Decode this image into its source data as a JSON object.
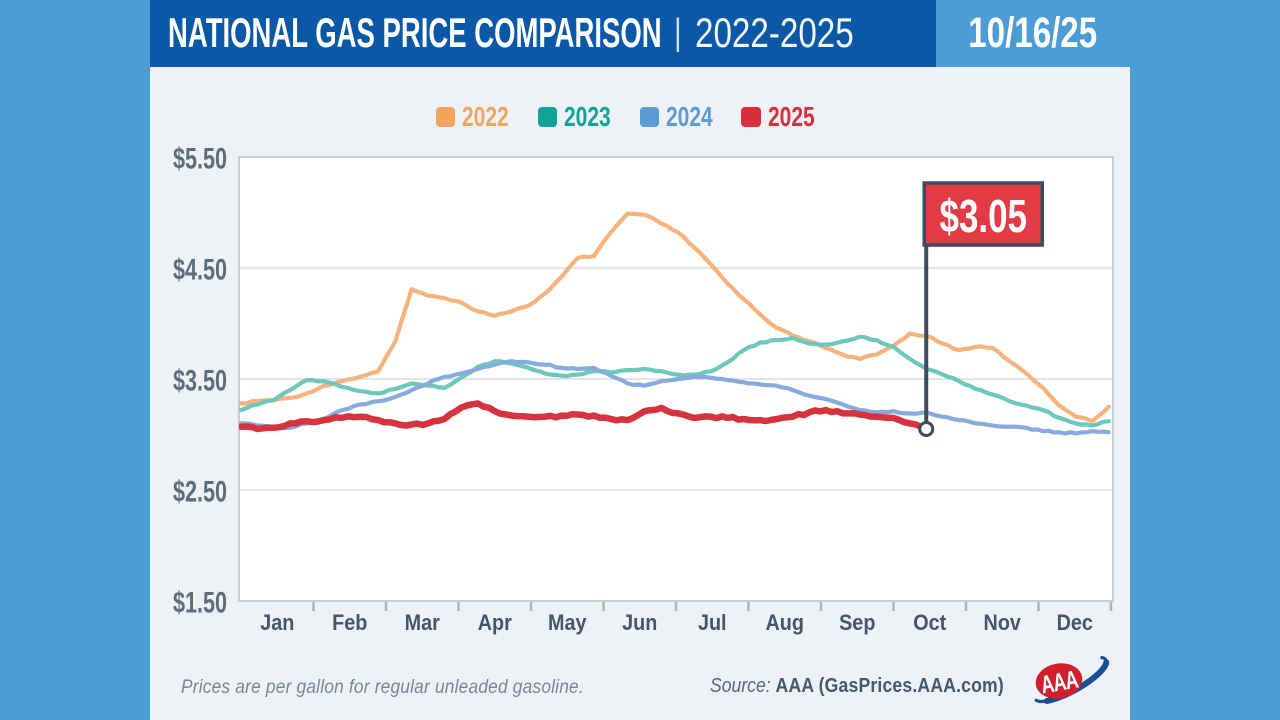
{
  "page": {
    "background": "#4D9CD6",
    "panel_color": "#EEF2F7"
  },
  "header": {
    "title": "NATIONAL GAS PRICE COMPARISON",
    "divider": "|",
    "subtitle": "2022-2025",
    "date": "10/16/25",
    "bar_color": "#0B58A6"
  },
  "legend": {
    "items": [
      {
        "label": "2022",
        "color": "#F0A45C"
      },
      {
        "label": "2023",
        "color": "#0FA496"
      },
      {
        "label": "2024",
        "color": "#5B9BD3"
      },
      {
        "label": "2025",
        "color": "#D92F3C"
      }
    ]
  },
  "chart_data": {
    "type": "line",
    "title": "National Gas Price Comparison 2022-2025",
    "unit": "USD per gallon",
    "x_categories": [
      "Jan",
      "Feb",
      "Mar",
      "Apr",
      "May",
      "Jun",
      "Jul",
      "Aug",
      "Sep",
      "Oct",
      "Nov",
      "Dec"
    ],
    "y_ticks": [
      {
        "value": 5.5,
        "label": "$5.50"
      },
      {
        "value": 4.5,
        "label": "$4.50"
      },
      {
        "value": 3.5,
        "label": "$3.50"
      },
      {
        "value": 2.5,
        "label": "$2.50"
      },
      {
        "value": 1.5,
        "label": "$1.50"
      }
    ],
    "y_range": [
      1.5,
      5.5
    ],
    "grid_values": [
      2.5,
      3.5,
      4.5
    ],
    "sample_interval_days": 7,
    "series": [
      {
        "name": "2022",
        "color": "#F6B37E",
        "width": 4.2,
        "values": [
          3.28,
          3.3,
          3.31,
          3.33,
          3.37,
          3.44,
          3.48,
          3.52,
          3.57,
          3.84,
          4.31,
          4.25,
          4.23,
          4.19,
          4.11,
          4.07,
          4.11,
          4.16,
          4.27,
          4.42,
          4.59,
          4.61,
          4.82,
          4.99,
          4.98,
          4.9,
          4.82,
          4.68,
          4.53,
          4.36,
          4.22,
          4.08,
          3.96,
          3.89,
          3.84,
          3.78,
          3.72,
          3.68,
          3.72,
          3.8,
          3.91,
          3.89,
          3.82,
          3.76,
          3.79,
          3.78,
          3.66,
          3.55,
          3.42,
          3.26,
          3.16,
          3.12,
          3.25
        ]
      },
      {
        "name": "2023",
        "color": "#6EC7BB",
        "width": 4.2,
        "values": [
          3.22,
          3.27,
          3.31,
          3.4,
          3.49,
          3.48,
          3.43,
          3.39,
          3.37,
          3.41,
          3.46,
          3.44,
          3.42,
          3.51,
          3.61,
          3.66,
          3.64,
          3.6,
          3.55,
          3.53,
          3.54,
          3.57,
          3.56,
          3.58,
          3.59,
          3.57,
          3.54,
          3.54,
          3.57,
          3.65,
          3.76,
          3.83,
          3.85,
          3.87,
          3.82,
          3.81,
          3.84,
          3.88,
          3.85,
          3.79,
          3.68,
          3.59,
          3.54,
          3.48,
          3.41,
          3.36,
          3.3,
          3.26,
          3.22,
          3.15,
          3.1,
          3.08,
          3.12
        ]
      },
      {
        "name": "2024",
        "color": "#86ABDC",
        "width": 4.2,
        "values": [
          3.1,
          3.08,
          3.07,
          3.06,
          3.1,
          3.14,
          3.22,
          3.27,
          3.3,
          3.34,
          3.4,
          3.46,
          3.52,
          3.55,
          3.59,
          3.63,
          3.66,
          3.65,
          3.63,
          3.6,
          3.59,
          3.6,
          3.53,
          3.46,
          3.44,
          3.48,
          3.5,
          3.52,
          3.51,
          3.49,
          3.47,
          3.45,
          3.44,
          3.4,
          3.35,
          3.32,
          3.27,
          3.22,
          3.2,
          3.21,
          3.19,
          3.2,
          3.16,
          3.13,
          3.1,
          3.08,
          3.07,
          3.06,
          3.03,
          3.02,
          3.01,
          3.03,
          3.02
        ]
      },
      {
        "name": "2025",
        "color": "#D7333E",
        "width": 6.5,
        "current": true,
        "values": [
          3.07,
          3.05,
          3.06,
          3.1,
          3.12,
          3.13,
          3.15,
          3.16,
          3.13,
          3.1,
          3.09,
          3.1,
          3.14,
          3.24,
          3.28,
          3.21,
          3.17,
          3.16,
          3.16,
          3.17,
          3.18,
          3.17,
          3.14,
          3.13,
          3.21,
          3.24,
          3.19,
          3.15,
          3.16,
          3.15,
          3.14,
          3.13,
          3.14,
          3.16,
          3.2,
          3.22,
          3.19,
          3.18,
          3.16,
          3.15,
          3.1,
          3.05
        ]
      }
    ],
    "annotation": {
      "label": "$3.05",
      "value": 3.05,
      "flag_fill": "#E23B45",
      "flag_border": "#3C4C5E"
    },
    "axis_colors": {
      "y_label": "#5E6C7B",
      "x_label": "#44566B",
      "grid": "#DADDE0",
      "border": "#C8CDD1",
      "tick": "#ADB5BC"
    },
    "plot_background": "#FFFFFF"
  },
  "footer": {
    "note": "Prices are per gallon for regular unleaded gasoline.",
    "source_prefix": "Source:",
    "source": "AAA (GasPrices.AAA.com)",
    "logo": "AAA"
  }
}
